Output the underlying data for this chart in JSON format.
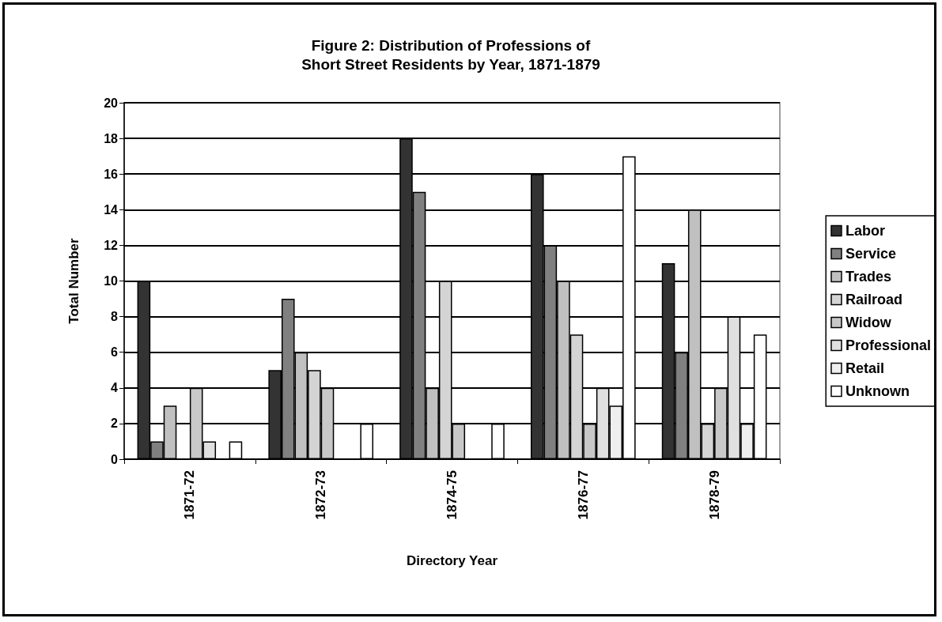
{
  "chart_data": {
    "type": "bar",
    "title": "Figure 2: Distribution of Professions of\nShort Street Residents by Year, 1871-1879",
    "xlabel": "Directory Year",
    "ylabel": "Total Number",
    "categories": [
      "1871-72",
      "1872-73",
      "1874-75",
      "1876-77",
      "1878-79"
    ],
    "series": [
      {
        "name": "Labor",
        "color": "#333333",
        "values": [
          10,
          5,
          18,
          16,
          11
        ]
      },
      {
        "name": "Service",
        "color": "#808080",
        "values": [
          1,
          9,
          15,
          12,
          6
        ]
      },
      {
        "name": "Trades",
        "color": "#c0c0c0",
        "values": [
          3,
          6,
          4,
          10,
          14
        ]
      },
      {
        "name": "Railroad",
        "color": "#d4d4d4",
        "values": [
          0,
          5,
          10,
          7,
          2
        ]
      },
      {
        "name": "Widow",
        "color": "#c8c8c8",
        "values": [
          4,
          4,
          2,
          2,
          4
        ]
      },
      {
        "name": "Professional",
        "color": "#e0e0e0",
        "values": [
          1,
          0,
          0,
          4,
          8
        ]
      },
      {
        "name": "Retail",
        "color": "#efefef",
        "values": [
          0,
          0,
          0,
          3,
          2
        ]
      },
      {
        "name": "Unknown",
        "color": "#ffffff",
        "values": [
          1,
          2,
          2,
          17,
          7
        ]
      }
    ],
    "ylim": [
      0,
      20
    ],
    "yticks": [
      0,
      2,
      4,
      6,
      8,
      10,
      12,
      14,
      16,
      18,
      20
    ],
    "grid": "y",
    "legend": "right"
  }
}
